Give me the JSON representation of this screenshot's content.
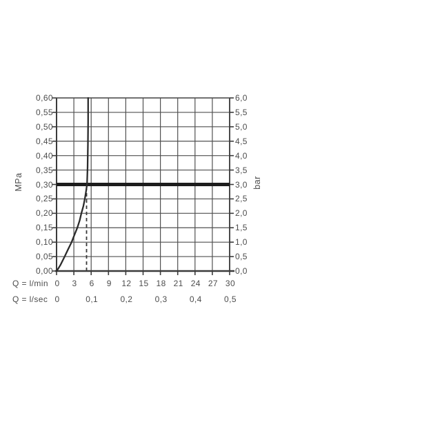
{
  "chart_data": {
    "type": "line",
    "title": "",
    "left_axis": {
      "label": "MPa",
      "min": 0,
      "max": 0.6,
      "step": 0.05,
      "ticks": [
        "0,60",
        "0,55",
        "0,50",
        "0,45",
        "0,40",
        "0,35",
        "0,30",
        "0,25",
        "0,20",
        "0,15",
        "0,10",
        "0,05",
        "0,00"
      ]
    },
    "right_axis": {
      "label": "bar",
      "min": 0,
      "max": 6.0,
      "step": 0.5,
      "ticks": [
        "6,0",
        "5,5",
        "5,0",
        "4,5",
        "4,0",
        "3,5",
        "3,0",
        "2,5",
        "2,0",
        "1,5",
        "1,0",
        "0,5",
        "0,0"
      ]
    },
    "x_axis_lmin": {
      "label": "Q = l/min",
      "min": 0,
      "max": 30,
      "step": 3,
      "ticks": [
        "0",
        "3",
        "6",
        "9",
        "12",
        "15",
        "18",
        "21",
        "24",
        "27",
        "30"
      ]
    },
    "x_axis_lsec": {
      "label": "Q = l/sec",
      "ticks": [
        {
          "text": "0",
          "at_lmin": 0
        },
        {
          "text": "0,1",
          "at_lmin": 6
        },
        {
          "text": "0,2",
          "at_lmin": 12
        },
        {
          "text": "0,3",
          "at_lmin": 18
        },
        {
          "text": "0,4",
          "at_lmin": 24
        },
        {
          "text": "0,5",
          "at_lmin": 30
        }
      ]
    },
    "reference_line": {
      "value_mpa": 0.3,
      "value_bar": 3.0
    },
    "dashed_line": {
      "x_lmin": 5.2,
      "from_mpa": 0.0,
      "to_mpa": 0.295
    },
    "series": [
      {
        "name": "flow-pressure-curve",
        "points_lmin_mpa": [
          [
            0,
            0
          ],
          [
            0.35,
            0.01
          ],
          [
            0.7,
            0.022
          ],
          [
            1.4,
            0.05
          ],
          [
            2.0,
            0.075
          ],
          [
            2.6,
            0.1
          ],
          [
            3.1,
            0.125
          ],
          [
            3.6,
            0.15
          ],
          [
            4.0,
            0.175
          ],
          [
            4.3,
            0.2
          ],
          [
            4.65,
            0.225
          ],
          [
            4.9,
            0.25
          ],
          [
            5.1,
            0.275
          ],
          [
            5.28,
            0.3
          ],
          [
            5.38,
            0.36
          ],
          [
            5.44,
            0.44
          ],
          [
            5.47,
            0.52
          ],
          [
            5.48,
            0.6
          ]
        ]
      }
    ],
    "grid": true,
    "legend": false,
    "colors": {
      "background": "#ffffff",
      "grid": "#4f4f4f",
      "axis": "#3a3a3a",
      "text": "#4c4c4c",
      "reference_line": "#1d1d1d",
      "curve": "#2b2b2b",
      "dashed": "#3a3a3a"
    }
  }
}
